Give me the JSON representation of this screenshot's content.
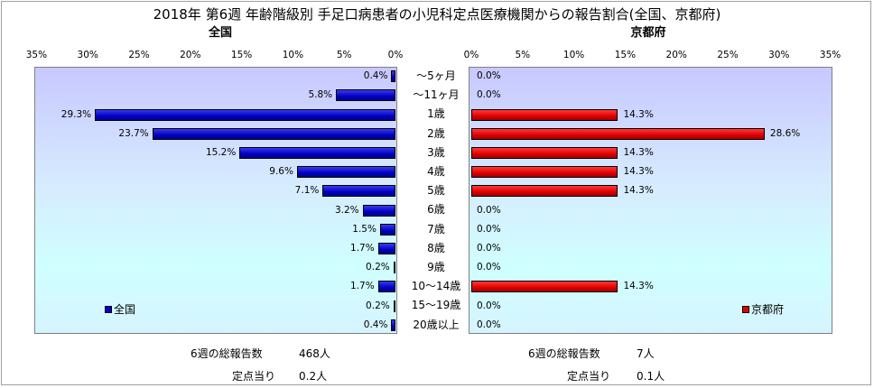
{
  "title": "2018年 第6週 年齢階級別 手足口病患者の小児科定点医療機関からの報告割合(全国、京都府)",
  "chart_data": [
    {
      "type": "bar",
      "name": "全国",
      "subtitle": "全国",
      "orientation": "horizontal",
      "direction": "leftward",
      "categories": [
        "～5ヶ月",
        "～11ヶ月",
        "1歳",
        "2歳",
        "3歳",
        "4歳",
        "5歳",
        "6歳",
        "7歳",
        "8歳",
        "9歳",
        "10～14歳",
        "15～19歳",
        "20歳以上"
      ],
      "values": [
        0.4,
        5.8,
        29.3,
        23.7,
        15.2,
        9.6,
        7.1,
        3.2,
        1.5,
        1.7,
        0.2,
        1.7,
        0.2,
        0.4
      ],
      "value_labels": [
        "0.4%",
        "5.8%",
        "29.3%",
        "23.7%",
        "15.2%",
        "9.6%",
        "7.1%",
        "3.2%",
        "1.5%",
        "1.7%",
        "0.2%",
        "1.7%",
        "0.2%",
        "0.4%"
      ],
      "xlim": [
        0,
        35
      ],
      "xticks": [
        "35%",
        "30%",
        "25%",
        "20%",
        "15%",
        "10%",
        "5%",
        "0%"
      ],
      "legend": "全国",
      "legend_position": "bottom-left",
      "color": "#0000c8"
    },
    {
      "type": "bar",
      "name": "京都府",
      "subtitle": "京都府",
      "orientation": "horizontal",
      "direction": "rightward",
      "categories": [
        "～5ヶ月",
        "～11ヶ月",
        "1歳",
        "2歳",
        "3歳",
        "4歳",
        "5歳",
        "6歳",
        "7歳",
        "8歳",
        "9歳",
        "10～14歳",
        "15～19歳",
        "20歳以上"
      ],
      "values": [
        0.0,
        0.0,
        14.3,
        28.6,
        14.3,
        14.3,
        14.3,
        0.0,
        0.0,
        0.0,
        0.0,
        14.3,
        0.0,
        0.0
      ],
      "value_labels": [
        "0.0%",
        "0.0%",
        "14.3%",
        "28.6%",
        "14.3%",
        "14.3%",
        "14.3%",
        "0.0%",
        "0.0%",
        "0.0%",
        "0.0%",
        "14.3%",
        "0.0%",
        "0.0%"
      ],
      "xlim": [
        0,
        35
      ],
      "xticks": [
        "0%",
        "5%",
        "10%",
        "15%",
        "20%",
        "25%",
        "30%",
        "35%"
      ],
      "legend": "京都府",
      "legend_position": "bottom-right",
      "color": "#e00000"
    }
  ],
  "footer": {
    "national": {
      "total_label": "6週の総報告数",
      "total_value": "468人",
      "per_label": "定点当り",
      "per_value": "0.2人"
    },
    "kyoto": {
      "total_label": "6週の総報告数",
      "total_value": "7人",
      "per_label": "定点当り",
      "per_value": "0.1人"
    }
  }
}
